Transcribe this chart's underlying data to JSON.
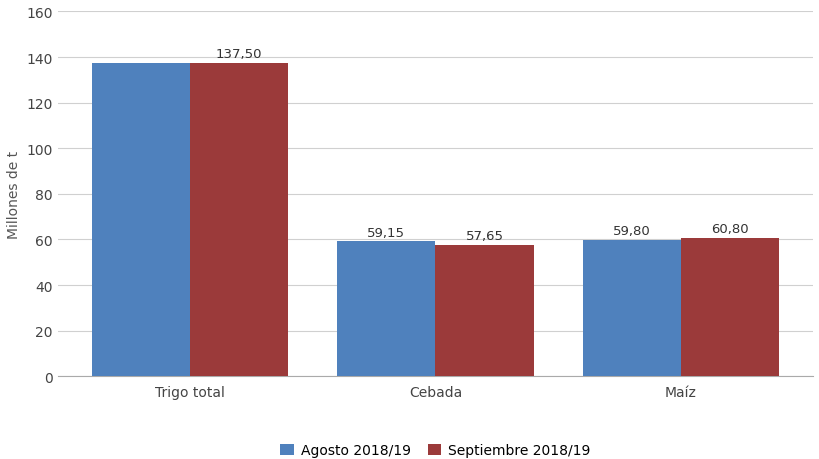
{
  "categories": [
    "Trigo total",
    "Cebada",
    "Maíz"
  ],
  "agosto_values": [
    137.5,
    59.15,
    59.8
  ],
  "septiembre_values": [
    137.5,
    57.65,
    60.8
  ],
  "agosto_label": "Agosto 2018/19",
  "septiembre_label": "Septiembre 2018/19",
  "agosto_color": "#4F81BD",
  "septiembre_color": "#9B3A3A",
  "ylabel": "Millones de t",
  "ylim": [
    0,
    160
  ],
  "yticks": [
    0,
    20,
    40,
    60,
    80,
    100,
    120,
    140,
    160
  ],
  "bar_width": 0.4,
  "annotation_labels_agosto": [
    "",
    "59,15",
    "59,80"
  ],
  "annotation_labels_septiembre": [
    "137,50",
    "57,65",
    "60,80"
  ],
  "annotation_fontsize": 9.5,
  "axis_label_fontsize": 10,
  "tick_fontsize": 10,
  "legend_fontsize": 10,
  "background_color": "#ffffff",
  "grid_color": "#d0d0d0"
}
